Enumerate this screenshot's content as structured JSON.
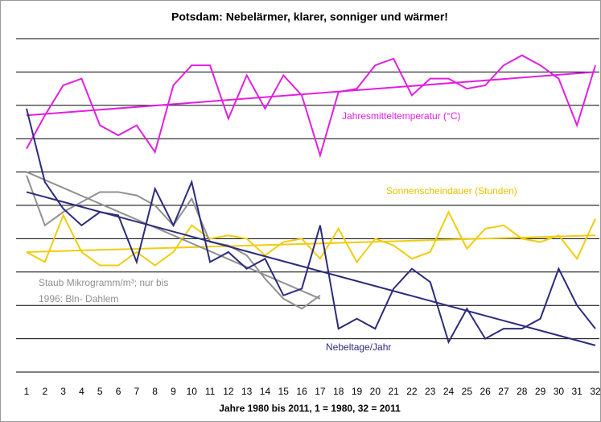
{
  "chart_data": {
    "type": "line",
    "title": "Potsdam: Nebelärmer, klarer, sonniger und wärmer!",
    "x_label": "Jahre 1980 bis 2011, 1 = 1980, 32 = 2011",
    "categories": [
      1,
      2,
      3,
      4,
      5,
      6,
      7,
      8,
      9,
      10,
      11,
      12,
      13,
      14,
      15,
      16,
      17,
      18,
      19,
      20,
      21,
      22,
      23,
      24,
      25,
      26,
      27,
      28,
      29,
      30,
      31,
      32
    ],
    "ylim": [
      0,
      10
    ],
    "yticks": [
      0,
      1,
      2,
      3,
      4,
      5,
      6,
      7,
      8,
      9,
      10
    ],
    "grid": true,
    "series": [
      {
        "name": [
          "Jahresmitteltemperatur (°C)"
        ],
        "color": "#e020e0",
        "values": [
          6.7,
          7.7,
          8.6,
          8.8,
          7.4,
          7.1,
          7.4,
          6.6,
          8.6,
          9.2,
          9.2,
          7.6,
          8.9,
          7.9,
          8.9,
          8.3,
          6.5,
          8.4,
          8.5,
          9.2,
          9.4,
          8.3,
          8.8,
          8.8,
          8.5,
          8.6,
          9.2,
          9.5,
          9.2,
          8.8,
          7.4,
          9.2
        ],
        "trend": [
          7.7,
          9.0
        ]
      },
      {
        "name": [
          "Sonnenscheindauer (Stunden)"
        ],
        "color": "#f0cc10",
        "values": [
          3.6,
          3.3,
          4.7,
          3.6,
          3.2,
          3.2,
          3.6,
          3.2,
          3.6,
          4.4,
          4.0,
          4.1,
          4.0,
          3.5,
          3.9,
          4.0,
          3.4,
          4.3,
          3.3,
          4.0,
          3.8,
          3.4,
          3.6,
          4.8,
          3.7,
          4.3,
          4.4,
          4.0,
          3.9,
          4.1,
          3.4,
          4.6
        ],
        "trend": [
          3.6,
          4.1
        ]
      },
      {
        "name": [
          "Staub Mikrogramm/m³; nur bis",
          "1996: Bln- Dahlem"
        ],
        "color": "#909090",
        "values": [
          5.9,
          4.4,
          4.8,
          5.1,
          5.4,
          5.4,
          5.3,
          5.0,
          4.4,
          5.2,
          3.9,
          3.8,
          3.5,
          2.8,
          2.2,
          1.9,
          2.3,
          null,
          null,
          null,
          null,
          null,
          null,
          null,
          null,
          null,
          null,
          null,
          null,
          null,
          null,
          null
        ],
        "trend": [
          6.0,
          2.2
        ]
      },
      {
        "name": [
          "Nebeltage/Jahr"
        ],
        "color": "#2c2c7c",
        "values": [
          7.9,
          5.7,
          4.9,
          4.4,
          4.8,
          4.7,
          3.3,
          5.5,
          4.4,
          5.7,
          3.3,
          3.6,
          3.1,
          3.4,
          2.3,
          2.5,
          4.4,
          1.3,
          1.6,
          1.3,
          2.5,
          3.1,
          2.7,
          0.9,
          1.9,
          1.0,
          1.3,
          1.3,
          1.6,
          3.1,
          2.0,
          1.3
        ],
        "trend": [
          5.4,
          0.8
        ]
      }
    ]
  }
}
